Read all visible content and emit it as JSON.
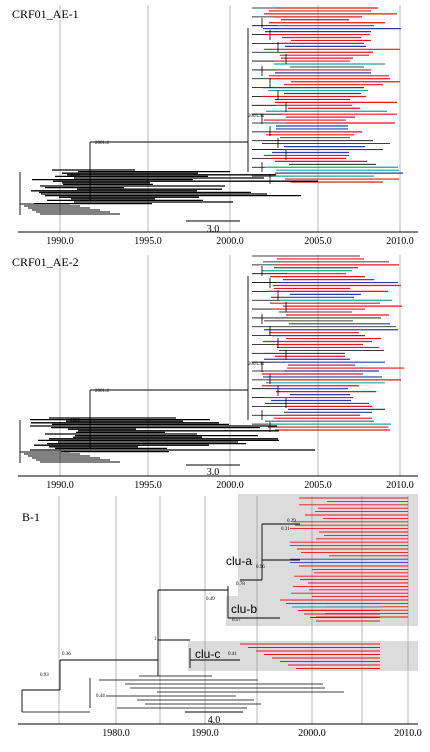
{
  "colors": {
    "black": "#000000",
    "red": "#e8141b",
    "blue": "#2a3aa8",
    "teal": "#1aa3a3",
    "grid": "#8a8a8a",
    "shade": "#dcdcdc"
  },
  "panels": [
    {
      "title": "CRF01_AE-1",
      "axis_ticks": [
        "1990.0",
        "1995.0",
        "2000.0",
        "2005.0",
        "2010.0"
      ],
      "scale_label": "3.0",
      "node_labels": [
        "2001.4",
        "2005.31",
        "1993"
      ]
    },
    {
      "title": "CRF01_AE-2",
      "axis_ticks": [
        "1990.0",
        "1995.0",
        "2000.0",
        "2005.0",
        "2010.0"
      ],
      "scale_label": "3.0",
      "node_labels": [
        "2001.4",
        "2005.31",
        "1993"
      ]
    },
    {
      "title": "B-1",
      "axis_ticks": [
        "1980.0",
        "1990.0",
        "2000.0",
        "2010.0"
      ],
      "scale_label": "4.0",
      "clusters": [
        "clu-a",
        "clu-b",
        "clu-c"
      ],
      "node_labels": [
        "0.78",
        "0.96",
        "0.49",
        "0.57",
        "0.36",
        "0.93",
        "1",
        "0.41",
        "0.29",
        "0.31",
        "0.44"
      ]
    }
  ]
}
